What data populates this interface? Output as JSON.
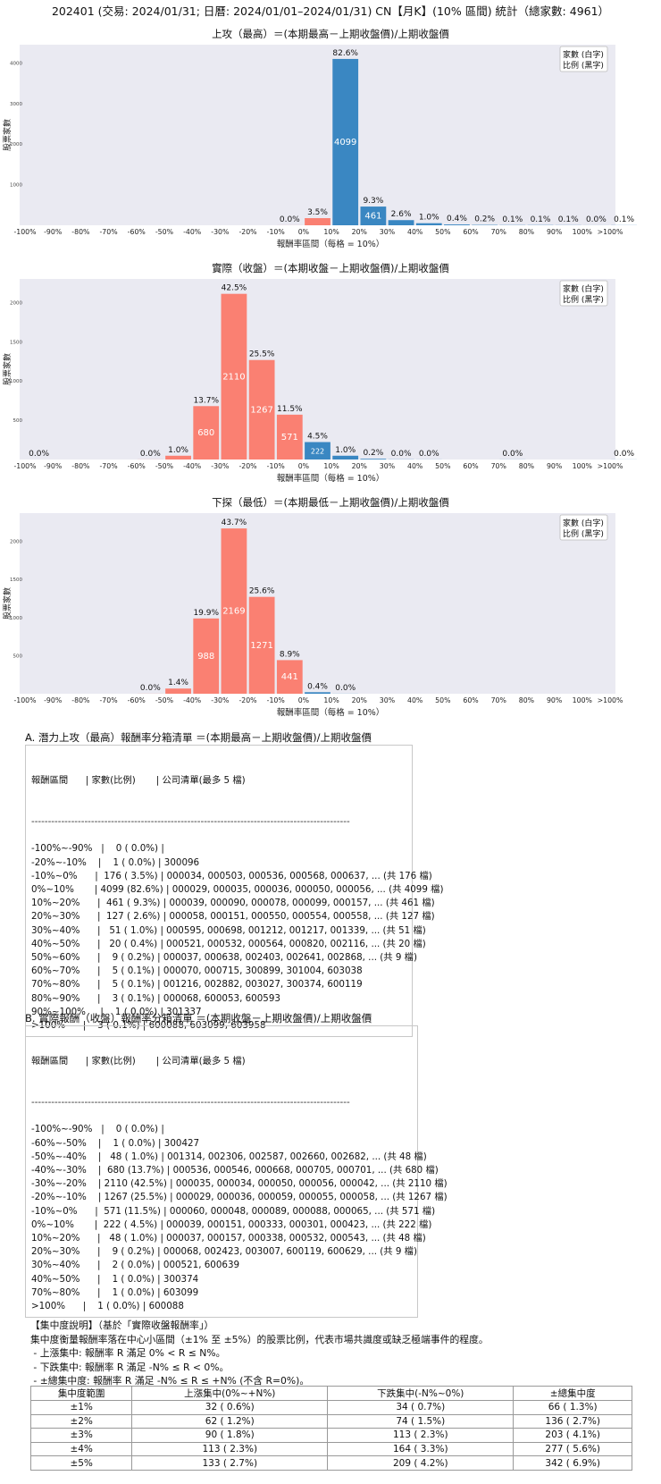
{
  "page_title": "202401 (交易: 2024/01/31; 日曆: 2024/01/01–2024/01/31) CN【月K】(10% 區間) 統計（總家數: 4961）",
  "chart_data": [
    {
      "type": "bar",
      "title": "上攻（最高）＝(本期最高－上期收盤價)/上期收盤價",
      "xlabel": "報酬率區間（每格 = 10%）",
      "ylabel": "股票家數",
      "legend": [
        "家數 (白字)",
        "比例 (黑字)"
      ],
      "legend_position": "top-right",
      "ylim": [
        0,
        4450
      ],
      "yticks": [
        0,
        1000,
        2000,
        3000,
        4000
      ],
      "xtick_labels": [
        "-100%",
        "-90%",
        "-80%",
        "-70%",
        "-60%",
        "-50%",
        "-40%",
        "-30%",
        "-20%",
        "-10%",
        "0%",
        "10%",
        "20%",
        "30%",
        "40%",
        "50%",
        "60%",
        "70%",
        "80%",
        "90%",
        "100%",
        ">100%"
      ],
      "bars": [
        {
          "bin": 9,
          "count": 1,
          "pct": "0.0%",
          "count_label": "",
          "color": "#fa8072"
        },
        {
          "bin": 10,
          "count": 176,
          "pct": "3.5%",
          "count_label": "176",
          "color": "#fa8072"
        },
        {
          "bin": 11,
          "count": 4099,
          "pct": "82.6%",
          "count_label": "4099",
          "color": "#3a87c2"
        },
        {
          "bin": 12,
          "count": 461,
          "pct": "9.3%",
          "count_label": "461",
          "color": "#3a87c2"
        },
        {
          "bin": 13,
          "count": 127,
          "pct": "2.6%",
          "count_label": "127",
          "color": "#3a87c2"
        },
        {
          "bin": 14,
          "count": 51,
          "pct": "1.0%",
          "count_label": "",
          "color": "#3a87c2"
        },
        {
          "bin": 15,
          "count": 20,
          "pct": "0.4%",
          "count_label": "",
          "color": "#3a87c2"
        },
        {
          "bin": 16,
          "count": 9,
          "pct": "0.2%",
          "count_label": "",
          "color": "#3a87c2"
        },
        {
          "bin": 17,
          "count": 5,
          "pct": "0.1%",
          "count_label": "",
          "color": "#3a87c2"
        },
        {
          "bin": 18,
          "count": 5,
          "pct": "0.1%",
          "count_label": "",
          "color": "#3a87c2"
        },
        {
          "bin": 19,
          "count": 3,
          "pct": "0.1%",
          "count_label": "",
          "color": "#3a87c2"
        },
        {
          "bin": 20,
          "count": 1,
          "pct": "0.0%",
          "count_label": "",
          "color": "#3a87c2"
        },
        {
          "bin": 21,
          "count": 3,
          "pct": "0.1%",
          "count_label": "",
          "color": "#3a87c2"
        }
      ]
    },
    {
      "type": "bar",
      "title": "實際（收盤）＝(本期收盤－上期收盤價)/上期收盤價",
      "xlabel": "報酬率區間（每格 = 10%）",
      "ylabel": "股票家數",
      "legend": [
        "家數 (白字)",
        "比例 (黑字)"
      ],
      "legend_position": "top-right",
      "ylim": [
        0,
        2300
      ],
      "yticks": [
        0,
        500,
        1000,
        1500,
        2000
      ],
      "xtick_labels": [
        "-100%",
        "-90%",
        "-80%",
        "-70%",
        "-60%",
        "-50%",
        "-40%",
        "-30%",
        "-20%",
        "-10%",
        "0%",
        "10%",
        "20%",
        "30%",
        "40%",
        "50%",
        "60%",
        "70%",
        "80%",
        "90%",
        "100%",
        ">100%"
      ],
      "bars": [
        {
          "bin": 0,
          "count": 0,
          "pct": "0.0%",
          "count_label": "",
          "color": "#fa8072"
        },
        {
          "bin": 4,
          "count": 1,
          "pct": "0.0%",
          "count_label": "",
          "color": "#fa8072"
        },
        {
          "bin": 5,
          "count": 48,
          "pct": "1.0%",
          "count_label": "48",
          "color": "#fa8072"
        },
        {
          "bin": 6,
          "count": 680,
          "pct": "13.7%",
          "count_label": "680",
          "color": "#fa8072"
        },
        {
          "bin": 7,
          "count": 2110,
          "pct": "42.5%",
          "count_label": "2110",
          "color": "#fa8072"
        },
        {
          "bin": 8,
          "count": 1267,
          "pct": "25.5%",
          "count_label": "1267",
          "color": "#fa8072"
        },
        {
          "bin": 9,
          "count": 571,
          "pct": "11.5%",
          "count_label": "571",
          "color": "#fa8072"
        },
        {
          "bin": 10,
          "count": 222,
          "pct": "4.5%",
          "count_label": "222",
          "color": "#3a87c2"
        },
        {
          "bin": 11,
          "count": 48,
          "pct": "1.0%",
          "count_label": "48",
          "color": "#3a87c2"
        },
        {
          "bin": 12,
          "count": 9,
          "pct": "0.2%",
          "count_label": "",
          "color": "#3a87c2"
        },
        {
          "bin": 13,
          "count": 2,
          "pct": "0.0%",
          "count_label": "",
          "color": "#3a87c2"
        },
        {
          "bin": 14,
          "count": 1,
          "pct": "0.0%",
          "count_label": "",
          "color": "#3a87c2"
        },
        {
          "bin": 17,
          "count": 1,
          "pct": "0.0%",
          "count_label": "",
          "color": "#3a87c2"
        },
        {
          "bin": 21,
          "count": 1,
          "pct": "0.0%",
          "count_label": "",
          "color": "#3a87c2"
        }
      ]
    },
    {
      "type": "bar",
      "title": "下探（最低）＝(本期最低－上期收盤價)/上期收盤價",
      "xlabel": "報酬率區間（每格 = 10%）",
      "ylabel": "股票家數",
      "legend": [
        "家數 (白字)",
        "比例 (黑字)"
      ],
      "legend_position": "top-right",
      "ylim": [
        0,
        2370
      ],
      "yticks": [
        0,
        500,
        1000,
        1500,
        2000
      ],
      "xtick_labels": [
        "-100%",
        "-90%",
        "-80%",
        "-70%",
        "-60%",
        "-50%",
        "-40%",
        "-30%",
        "-20%",
        "-10%",
        "0%",
        "10%",
        "20%",
        "30%",
        "40%",
        "50%",
        "60%",
        "70%",
        "80%",
        "90%",
        "100%",
        ">100%"
      ],
      "bars": [
        {
          "bin": 4,
          "count": 1,
          "pct": "0.0%",
          "count_label": "",
          "color": "#fa8072"
        },
        {
          "bin": 5,
          "count": 68,
          "pct": "1.4%",
          "count_label": "",
          "color": "#fa8072"
        },
        {
          "bin": 6,
          "count": 988,
          "pct": "19.9%",
          "count_label": "988",
          "color": "#fa8072"
        },
        {
          "bin": 7,
          "count": 2169,
          "pct": "43.7%",
          "count_label": "2169",
          "color": "#fa8072"
        },
        {
          "bin": 8,
          "count": 1271,
          "pct": "25.6%",
          "count_label": "1271",
          "color": "#fa8072"
        },
        {
          "bin": 9,
          "count": 441,
          "pct": "8.9%",
          "count_label": "441",
          "color": "#fa8072"
        },
        {
          "bin": 10,
          "count": 20,
          "pct": "0.4%",
          "count_label": "",
          "color": "#3a87c2"
        },
        {
          "bin": 11,
          "count": 1,
          "pct": "0.0%",
          "count_label": "",
          "color": "#3a87c2"
        }
      ]
    }
  ],
  "section_a": {
    "title": "A. 潛力上攻（最高）報酬率分箱清單 ＝(本期最高－上期收盤價)/上期收盤價",
    "header": "報酬區間      | 家數(比例)       | 公司清單(最多 5 檔)",
    "separator": "------------------------------------------------------------------------------------------------",
    "rows": [
      "-100%~-90%   |    0 ( 0.0%) |",
      "-20%~-10%    |    1 ( 0.0%) | 300096",
      "-10%~0%      |  176 ( 3.5%) | 000034, 000503, 000536, 000568, 000637, ... (共 176 檔)",
      "0%~10%       | 4099 (82.6%) | 000029, 000035, 000036, 000050, 000056, ... (共 4099 檔)",
      "10%~20%      |  461 ( 9.3%) | 000039, 000090, 000078, 000099, 000157, ... (共 461 檔)",
      "20%~30%      |  127 ( 2.6%) | 000058, 000151, 000550, 000554, 000558, ... (共 127 檔)",
      "30%~40%      |   51 ( 1.0%) | 000595, 000698, 001212, 001217, 001339, ... (共 51 檔)",
      "40%~50%      |   20 ( 0.4%) | 000521, 000532, 000564, 000820, 002116, ... (共 20 檔)",
      "50%~60%      |    9 ( 0.2%) | 000037, 000638, 002403, 002641, 002868, ... (共 9 檔)",
      "60%~70%      |    5 ( 0.1%) | 000070, 000715, 300899, 301004, 603038",
      "70%~80%      |    5 ( 0.1%) | 001216, 002882, 003027, 300374, 600119",
      "80%~90%      |    3 ( 0.1%) | 000068, 600053, 600593",
      "90%~100%     |    1 ( 0.0%) | 301337",
      ">100%      |    3 ( 0.1%) | 600088, 603099, 603958"
    ]
  },
  "section_b": {
    "title": "B. 實際報酬（收盤）報酬率分箱清單 ＝(本期收盤－上期收盤價)/上期收盤價",
    "header": "報酬區間      | 家數(比例)       | 公司清單(最多 5 檔)",
    "separator": "------------------------------------------------------------------------------------------------",
    "rows": [
      "-100%~-90%   |    0 ( 0.0%) |",
      "-60%~-50%    |    1 ( 0.0%) | 300427",
      "-50%~-40%    |   48 ( 1.0%) | 001314, 002306, 002587, 002660, 002682, ... (共 48 檔)",
      "-40%~-30%    |  680 (13.7%) | 000536, 000546, 000668, 000705, 000701, ... (共 680 檔)",
      "-30%~-20%    | 2110 (42.5%) | 000035, 000034, 000050, 000056, 000042, ... (共 2110 檔)",
      "-20%~-10%    | 1267 (25.5%) | 000029, 000036, 000059, 000055, 000058, ... (共 1267 檔)",
      "-10%~0%      |  571 (11.5%) | 000060, 000048, 000089, 000088, 000065, ... (共 571 檔)",
      "0%~10%       |  222 ( 4.5%) | 000039, 000151, 000333, 000301, 000423, ... (共 222 檔)",
      "10%~20%      |   48 ( 1.0%) | 000037, 000157, 000338, 000532, 000543, ... (共 48 檔)",
      "20%~30%      |    9 ( 0.2%) | 000068, 002423, 003007, 600119, 600629, ... (共 9 檔)",
      "30%~40%      |    2 ( 0.0%) | 000521, 600639",
      "40%~50%      |    1 ( 0.0%) | 300374",
      "70%~80%      |    1 ( 0.0%) | 603099",
      ">100%      |    1 ( 0.0%) | 600088"
    ]
  },
  "notes": {
    "heading": "【集中度說明】（基於「實際收盤報酬率」）",
    "line1": "集中度衡量報酬率落在中心小區間（±1% 至 ±5%）的股票比例，代表市場共識度或缺乏極端事件的程度。",
    "line2": " - 上漲集中: 報酬率 R 滿足 0% < R ≤ N%。",
    "line3": " - 下跌集中: 報酬率 R 滿足 -N% ≤ R < 0%。",
    "line4": " - ±總集中度: 報酬率 R 滿足 -N% ≤ R ≤ +N% (不含 R=0%)。"
  },
  "concentration_table": {
    "headers": [
      "集中度範圍",
      "上漲集中(0%~+N%)",
      "下跌集中(-N%~0%)",
      "±總集中度"
    ],
    "rows": [
      [
        "±1%",
        "32 ( 0.6%)",
        "34 ( 0.7%)",
        "66 ( 1.3%)"
      ],
      [
        "±2%",
        "62 ( 1.2%)",
        "74 ( 1.5%)",
        "136 ( 2.7%)"
      ],
      [
        "±3%",
        "90 ( 1.8%)",
        "113 ( 2.3%)",
        "203 ( 4.1%)"
      ],
      [
        "±4%",
        "113 ( 2.3%)",
        "164 ( 3.3%)",
        "277 ( 5.6%)"
      ],
      [
        "±5%",
        "133 ( 2.7%)",
        "209 ( 4.2%)",
        "342 ( 6.9%)"
      ]
    ]
  }
}
